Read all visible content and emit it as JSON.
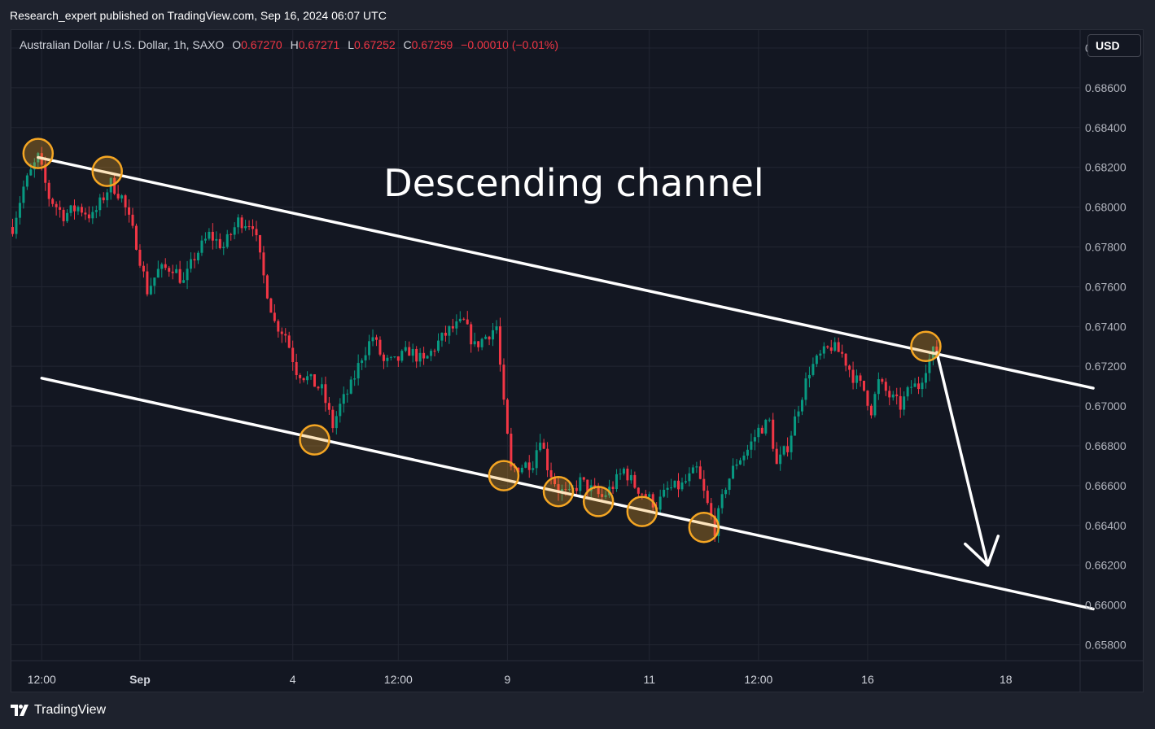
{
  "header": {
    "publisher": "Research_expert published on TradingView.com, Sep 16, 2024 06:07 UTC"
  },
  "legend": {
    "symbol": "Australian Dollar / U.S. Dollar, 1h, SAXO",
    "open_label": "O",
    "open_value": "0.67270",
    "high_label": "H",
    "high_value": "0.67271",
    "low_label": "L",
    "low_value": "0.67252",
    "close_label": "C",
    "close_value": "0.67259",
    "change": "−0.00010 (−0.01%)"
  },
  "currency_button": "USD",
  "footer": {
    "brand": "TradingView"
  },
  "colors": {
    "background": "#131722",
    "up_candle": "#089981",
    "down_candle": "#f23645",
    "channel_line": "#ffffff",
    "touch_marker": "#f5a623"
  },
  "chart_data": {
    "type": "candlestick",
    "title": "",
    "annotation": "Descending channel",
    "y_axis_side": "right",
    "ylim": [
      0.6572,
      0.6889
    ],
    "y_ticks": [
      "0.68800",
      "0.68600",
      "0.68400",
      "0.68200",
      "0.68000",
      "0.67800",
      "0.67600",
      "0.67400",
      "0.67200",
      "0.67000",
      "0.66800",
      "0.66600",
      "0.66400",
      "0.66200",
      "0.66000",
      "0.65800"
    ],
    "x_tick_labels": [
      "12:00",
      "Sep",
      "4",
      "12:00",
      "9",
      "11",
      "12:00",
      "16",
      "18"
    ],
    "last_close": 0.67259,
    "price_path": [
      [
        0,
        0.679
      ],
      [
        3,
        0.681
      ],
      [
        7,
        0.6825
      ],
      [
        10,
        0.6805
      ],
      [
        14,
        0.6796
      ],
      [
        18,
        0.68
      ],
      [
        22,
        0.6795
      ],
      [
        27,
        0.6812
      ],
      [
        30,
        0.6805
      ],
      [
        34,
        0.6782
      ],
      [
        37,
        0.6758
      ],
      [
        40,
        0.6768
      ],
      [
        44,
        0.677
      ],
      [
        47,
        0.6762
      ],
      [
        50,
        0.6775
      ],
      [
        54,
        0.6786
      ],
      [
        58,
        0.678
      ],
      [
        62,
        0.6793
      ],
      [
        66,
        0.6792
      ],
      [
        69,
        0.6765
      ],
      [
        72,
        0.6742
      ],
      [
        75,
        0.6736
      ],
      [
        78,
        0.6718
      ],
      [
        81,
        0.6714
      ],
      [
        85,
        0.6708
      ],
      [
        88,
        0.669
      ],
      [
        90,
        0.67
      ],
      [
        93,
        0.671
      ],
      [
        96,
        0.6725
      ],
      [
        99,
        0.6735
      ],
      [
        102,
        0.6722
      ],
      [
        105,
        0.6722
      ],
      [
        109,
        0.6728
      ],
      [
        113,
        0.6722
      ],
      [
        117,
        0.6732
      ],
      [
        120,
        0.6738
      ],
      [
        124,
        0.6742
      ],
      [
        127,
        0.673
      ],
      [
        130,
        0.6735
      ],
      [
        133,
        0.674
      ],
      [
        135,
        0.67
      ],
      [
        137,
        0.6668
      ],
      [
        140,
        0.667
      ],
      [
        143,
        0.6672
      ],
      [
        145,
        0.6685
      ],
      [
        147,
        0.667
      ],
      [
        150,
        0.6658
      ],
      [
        153,
        0.6655
      ],
      [
        156,
        0.6662
      ],
      [
        159,
        0.6658
      ],
      [
        162,
        0.6654
      ],
      [
        165,
        0.666
      ],
      [
        168,
        0.6668
      ],
      [
        171,
        0.666
      ],
      [
        174,
        0.6655
      ],
      [
        177,
        0.665
      ],
      [
        180,
        0.6658
      ],
      [
        184,
        0.666
      ],
      [
        188,
        0.6668
      ],
      [
        191,
        0.665
      ],
      [
        193,
        0.6638
      ],
      [
        196,
        0.666
      ],
      [
        199,
        0.6672
      ],
      [
        202,
        0.6678
      ],
      [
        205,
        0.6688
      ],
      [
        208,
        0.6692
      ],
      [
        210,
        0.667
      ],
      [
        213,
        0.668
      ],
      [
        216,
        0.67
      ],
      [
        219,
        0.6718
      ],
      [
        222,
        0.6725
      ],
      [
        225,
        0.673
      ],
      [
        228,
        0.6726
      ],
      [
        231,
        0.6715
      ],
      [
        234,
        0.6708
      ],
      [
        236,
        0.6698
      ],
      [
        238,
        0.6712
      ],
      [
        241,
        0.6705
      ],
      [
        244,
        0.67
      ],
      [
        247,
        0.671
      ],
      [
        249,
        0.671
      ],
      [
        251,
        0.672
      ],
      [
        253,
        0.6727
      ],
      [
        254,
        0.67259
      ]
    ],
    "channel": {
      "upper": {
        "start": [
          7,
          0.6825
        ],
        "end": [
          297,
          0.6709
        ]
      },
      "lower": {
        "start": [
          8,
          0.6714
        ],
        "end": [
          297,
          0.6598
        ]
      }
    },
    "forecast_arrow": {
      "from": [
        254,
        0.6727
      ],
      "to": [
        268,
        0.662
      ]
    },
    "touch_points": [
      [
        7,
        0.6827
      ],
      [
        26,
        0.6818
      ],
      [
        83,
        0.6683
      ],
      [
        135,
        0.6665
      ],
      [
        150,
        0.6657
      ],
      [
        161,
        0.6652
      ],
      [
        173,
        0.6647
      ],
      [
        190,
        0.6639
      ],
      [
        251,
        0.673
      ]
    ]
  }
}
